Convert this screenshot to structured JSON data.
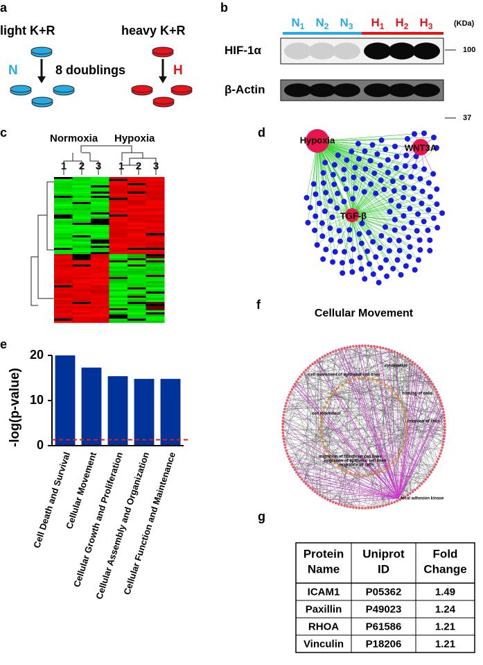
{
  "panel_labels": [
    "a",
    "b",
    "c",
    "d",
    "e",
    "f",
    "g"
  ],
  "a": {
    "light": "light K+R",
    "heavy": "heavy K+R",
    "n": "N",
    "h": "H",
    "doublings": "8 doublings"
  },
  "b": {
    "lanes": [
      {
        "letter": "N",
        "index": "1"
      },
      {
        "letter": "N",
        "index": "2"
      },
      {
        "letter": "N",
        "index": "3"
      },
      {
        "letter": "H",
        "index": "1"
      },
      {
        "letter": "H",
        "index": "2"
      },
      {
        "letter": "H",
        "index": "3"
      }
    ],
    "unit": "(KDa)",
    "blots": [
      "HIF-1α",
      "β-Actin"
    ],
    "markers": [
      "100",
      "37"
    ]
  },
  "c": {
    "groups": [
      "Normoxia",
      "Hypoxia"
    ],
    "samples": [
      "1",
      "2",
      "3",
      "1",
      "2",
      "3"
    ]
  },
  "d": {
    "nodes": [
      "Hypoxia",
      "WNT3A",
      "TGF-β"
    ]
  },
  "chart_data": {
    "type": "bar",
    "categories": [
      "Cell Death and Survival",
      "Cellular Movement",
      "Cellular Growth and Proliferation",
      "Cellular Assembly and Organization",
      "Cellular Function and Maintenance"
    ],
    "values": [
      20,
      17.3,
      15.4,
      14.8,
      14.8
    ],
    "color": "#003399",
    "ylabel": "-log(p-value)",
    "ylim": [
      0,
      20
    ],
    "yticks": [
      0,
      10,
      20
    ],
    "threshold": 1.3,
    "threshold_color": "#e8141c"
  },
  "f": {
    "title": "Cellular Movement",
    "labels": [
      "cytokinesis",
      "cell movement of epithelial cell lines",
      "homing of cells",
      "cell movement",
      "invasion of cells",
      "migration of fibroblast cell lines",
      "migration of epithelial cell lines",
      "migration of cells",
      "focal adhesion kinase"
    ]
  },
  "g": {
    "header": [
      [
        "Protein",
        "Name"
      ],
      [
        "Uniprot",
        "ID"
      ],
      [
        "Fold",
        "Change"
      ]
    ],
    "rows": [
      [
        "ICAM1",
        "P05362",
        "1.49"
      ],
      [
        "Paxillin",
        "P49023",
        "1.24"
      ],
      [
        "RHOA",
        "P61586",
        "1.21"
      ],
      [
        "Vinculin",
        "P18206",
        "1.21"
      ]
    ]
  }
}
